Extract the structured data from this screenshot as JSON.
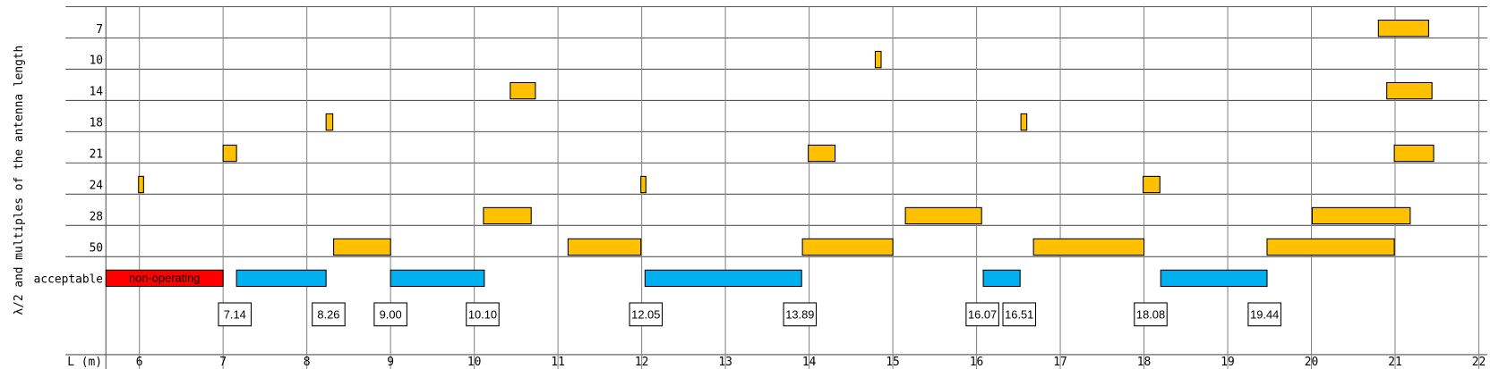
{
  "chart_data": {
    "type": "range-bar",
    "y_axis_label": "λ/2 and multiples of the antenna length",
    "x_axis_label": "L (m)",
    "xlim": [
      5.6,
      22.1
    ],
    "xticks": [
      6,
      7,
      8,
      9,
      10,
      11,
      12,
      13,
      14,
      15,
      16,
      17,
      18,
      19,
      20,
      21,
      22
    ],
    "grid": true,
    "rows": [
      {
        "label": "7",
        "color": "#ffc000",
        "ranges": [
          [
            20.8,
            21.4
          ]
        ]
      },
      {
        "label": "10",
        "color": "#ffc000",
        "ranges": [
          [
            14.79,
            14.86
          ]
        ]
      },
      {
        "label": "14",
        "color": "#ffc000",
        "ranges": [
          [
            10.43,
            10.73
          ],
          [
            20.9,
            21.44
          ]
        ]
      },
      {
        "label": "18",
        "color": "#ffc000",
        "ranges": [
          [
            8.23,
            8.31
          ],
          [
            16.53,
            16.6
          ]
        ]
      },
      {
        "label": "21",
        "color": "#ffc000",
        "ranges": [
          [
            7.0,
            7.16
          ],
          [
            13.99,
            14.31
          ],
          [
            20.99,
            21.46
          ]
        ]
      },
      {
        "label": "24",
        "color": "#ffc000",
        "ranges": [
          [
            5.99,
            6.05
          ],
          [
            11.99,
            12.05
          ],
          [
            17.99,
            18.19
          ]
        ]
      },
      {
        "label": "28",
        "color": "#ffc000",
        "ranges": [
          [
            10.11,
            10.68
          ],
          [
            15.15,
            16.06
          ],
          [
            20.01,
            21.18
          ]
        ]
      },
      {
        "label": "50",
        "color": "#ffc000",
        "ranges": [
          [
            8.32,
            9.0
          ],
          [
            11.12,
            11.99
          ],
          [
            13.92,
            15.0
          ],
          [
            16.68,
            18.0
          ],
          [
            19.47,
            20.99
          ]
        ]
      },
      {
        "label": "acceptable",
        "color": "#00b0f0",
        "ranges": [
          [
            7.16,
            8.23
          ],
          [
            9.0,
            10.12
          ],
          [
            12.04,
            13.91
          ],
          [
            16.08,
            16.52
          ],
          [
            18.2,
            19.47
          ]
        ]
      }
    ],
    "non_operating": {
      "label": "non-operating",
      "color": "#ff0000",
      "range": [
        5.6,
        7.0
      ]
    },
    "boundary_labels": [
      {
        "value": 7.14,
        "label": "7.14"
      },
      {
        "value": 8.26,
        "label": "8.26"
      },
      {
        "value": 9,
        "label": "9.00"
      },
      {
        "value": 10.1,
        "label": "10.10"
      },
      {
        "value": 12.05,
        "label": "12.05"
      },
      {
        "value": 13.89,
        "label": "13.89"
      },
      {
        "value": 16.07,
        "label": "16.07"
      },
      {
        "value": 16.51,
        "label": "16.51"
      },
      {
        "value": 18.08,
        "label": "18.08"
      },
      {
        "value": 19.44,
        "label": "19.44"
      }
    ]
  }
}
